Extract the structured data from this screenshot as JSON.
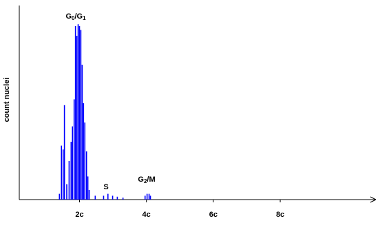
{
  "chart_data": {
    "type": "bar",
    "y_label": "count nuclei",
    "color": "#0000ff",
    "x": [
      1.4,
      1.46,
      1.51,
      1.55,
      1.62,
      1.69,
      1.75,
      1.79,
      1.84,
      1.88,
      1.92,
      1.96,
      2.0,
      2.04,
      2.08,
      2.12,
      2.16,
      2.21,
      2.25,
      2.29,
      2.47,
      2.72,
      2.85,
      2.99,
      3.13,
      3.3,
      3.96,
      4.02,
      4.08,
      4.12
    ],
    "values": [
      3,
      28,
      26,
      49,
      8,
      20,
      30,
      38,
      52,
      90,
      85,
      91,
      90,
      88,
      70,
      50,
      40,
      25,
      12,
      5,
      2,
      2,
      3,
      2,
      1.5,
      1,
      2,
      3,
      3,
      2
    ],
    "xlim": [
      0.2,
      10.9
    ],
    "ylim": [
      0,
      100
    ],
    "xticks": [
      {
        "value": 2,
        "label": "2c"
      },
      {
        "value": 4,
        "label": "4c"
      },
      {
        "value": 6,
        "label": "6c"
      },
      {
        "value": 8,
        "label": "8c"
      }
    ],
    "annotations": [
      {
        "parts": [
          "G",
          "0",
          "/G",
          "1"
        ]
      },
      {
        "parts": [
          "S"
        ]
      },
      {
        "parts": [
          "G",
          "2",
          "/M"
        ]
      }
    ]
  }
}
